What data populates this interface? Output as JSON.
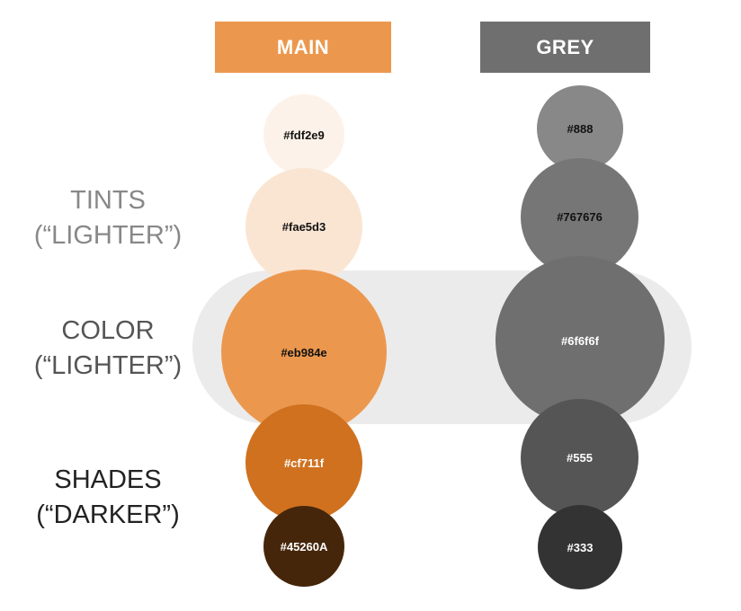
{
  "headers": {
    "main": "MAIN",
    "grey": "GREY"
  },
  "row_labels": {
    "tints": {
      "line1": "TINTS",
      "line2": "(“LIGHTER”)"
    },
    "color": {
      "line1": "COLOR",
      "line2": "(“LIGHTER”)"
    },
    "shades": {
      "line1": "SHADES",
      "line2": "(“DARKER”)"
    }
  },
  "main_swatches": [
    {
      "label": "#fdf2e9",
      "color": "#fdf2e9"
    },
    {
      "label": "#fae5d3",
      "color": "#fae5d3"
    },
    {
      "label": "#eb984e",
      "color": "#eb984e"
    },
    {
      "label": "#cf711f",
      "color": "#cf711f"
    },
    {
      "label": "#45260A",
      "color": "#45260a"
    }
  ],
  "grey_swatches": [
    {
      "label": "#888",
      "color": "#888888"
    },
    {
      "label": "#767676",
      "color": "#767676"
    },
    {
      "label": "#6f6f6f",
      "color": "#6f6f6f"
    },
    {
      "label": "#555",
      "color": "#555555"
    },
    {
      "label": "#333",
      "color": "#333333"
    }
  ]
}
